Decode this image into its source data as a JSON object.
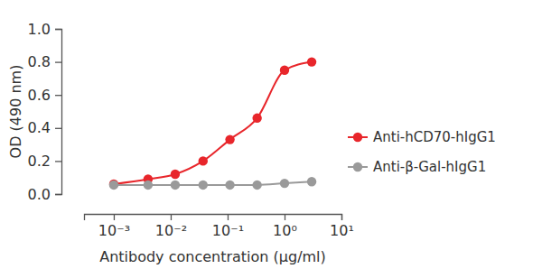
{
  "chart_data": {
    "type": "line",
    "x_label": "Antibody concentration (µg/ml)",
    "y_label": "OD (490 nm)",
    "log": "x",
    "grid": false,
    "legend": "right",
    "x": [
      0.001,
      0.004,
      0.012,
      0.037,
      0.11,
      0.33,
      1,
      3
    ],
    "series": [
      {
        "name": "Anti-hCD70-hIgG1",
        "color": "#e8262b",
        "marker": "circle",
        "line_style": "solid",
        "values": [
          0.06,
          0.09,
          0.12,
          0.2,
          0.33,
          0.46,
          0.75,
          0.8
        ]
      },
      {
        "name": "Anti-β-Gal-hIgG1",
        "color": "#9a9a9a",
        "marker": "circle",
        "line_style": "solid",
        "values": [
          0.055,
          0.055,
          0.055,
          0.055,
          0.055,
          0.055,
          0.065,
          0.075
        ]
      }
    ],
    "xlim": [
      0.0003,
      10
    ],
    "xticks": [
      {
        "value": 0.001,
        "label": "10⁻³"
      },
      {
        "value": 0.01,
        "label": "10⁻²"
      },
      {
        "value": 0.1,
        "label": "10⁻¹"
      },
      {
        "value": 1,
        "label": "10⁰"
      },
      {
        "value": 10,
        "label": "10¹"
      }
    ],
    "ylim": [
      0,
      1
    ],
    "yticks": [
      {
        "value": 0,
        "label": "0.0"
      },
      0.2,
      0.4,
      0.6,
      0.8,
      {
        "value": 1,
        "label": "1.0"
      }
    ]
  }
}
